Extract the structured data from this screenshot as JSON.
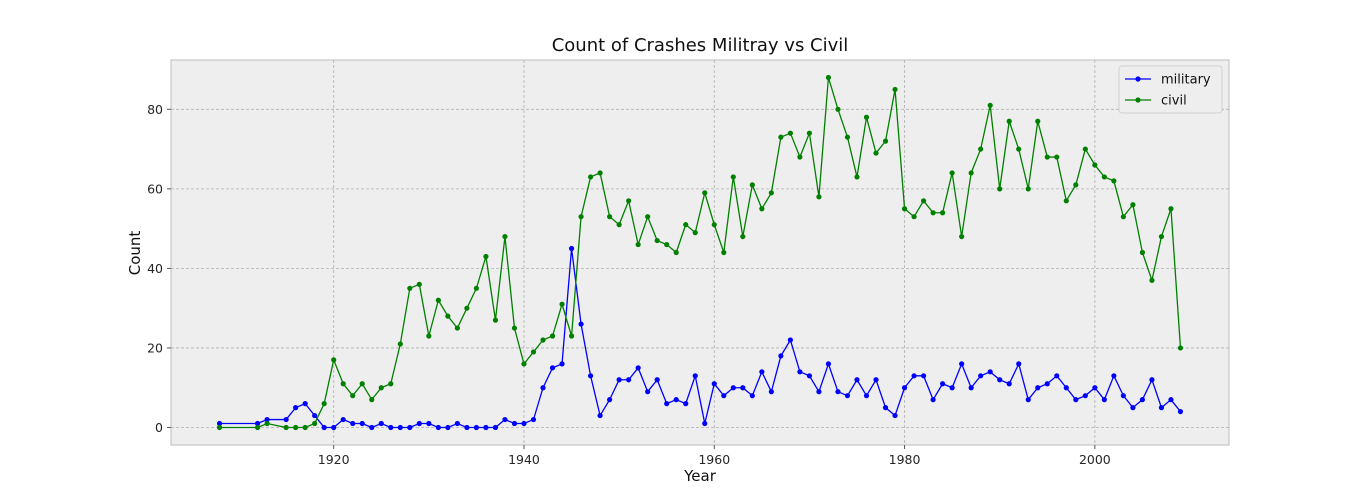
{
  "chart_data": {
    "type": "line",
    "title": "Count of Crashes Militray vs Civil",
    "xlabel": "Year",
    "ylabel": "Count",
    "xlim": [
      1902.9,
      2014.1
    ],
    "ylim": [
      -4.4,
      92.4
    ],
    "xticks": [
      1920,
      1940,
      1960,
      1980,
      2000
    ],
    "yticks": [
      0,
      20,
      40,
      60,
      80
    ],
    "grid": true,
    "legend_position": "top-right",
    "series": [
      {
        "name": "military",
        "color": "#0000ff",
        "x": [
          1908,
          1912,
          1913,
          1915,
          1916,
          1917,
          1918,
          1919,
          1920,
          1921,
          1922,
          1923,
          1924,
          1925,
          1926,
          1927,
          1928,
          1929,
          1930,
          1931,
          1932,
          1933,
          1934,
          1935,
          1936,
          1937,
          1938,
          1939,
          1940,
          1941,
          1942,
          1943,
          1944,
          1945,
          1946,
          1947,
          1948,
          1949,
          1950,
          1951,
          1952,
          1953,
          1954,
          1955,
          1956,
          1957,
          1958,
          1959,
          1960,
          1961,
          1962,
          1963,
          1964,
          1965,
          1966,
          1967,
          1968,
          1969,
          1970,
          1971,
          1972,
          1973,
          1974,
          1975,
          1976,
          1977,
          1978,
          1979,
          1980,
          1981,
          1982,
          1983,
          1984,
          1985,
          1986,
          1987,
          1988,
          1989,
          1990,
          1991,
          1992,
          1993,
          1994,
          1995,
          1996,
          1997,
          1998,
          1999,
          2000,
          2001,
          2002,
          2003,
          2004,
          2005,
          2006,
          2007,
          2008,
          2009
        ],
        "y": [
          1,
          1,
          2,
          2,
          5,
          6,
          3,
          0,
          0,
          2,
          1,
          1,
          0,
          1,
          0,
          0,
          0,
          1,
          1,
          0,
          0,
          1,
          0,
          0,
          0,
          0,
          2,
          1,
          1,
          2,
          10,
          15,
          16,
          45,
          26,
          13,
          3,
          7,
          12,
          12,
          15,
          9,
          12,
          6,
          7,
          6,
          13,
          1,
          11,
          8,
          10,
          10,
          8,
          14,
          9,
          18,
          22,
          14,
          13,
          9,
          16,
          9,
          8,
          12,
          8,
          12,
          5,
          3,
          10,
          13,
          13,
          7,
          11,
          10,
          16,
          10,
          13,
          14,
          12,
          11,
          16,
          7,
          10,
          11,
          13,
          10,
          7,
          8,
          10,
          7,
          13,
          8,
          5,
          7,
          12,
          5,
          7,
          4
        ]
      },
      {
        "name": "civil",
        "color": "#008000",
        "x": [
          1908,
          1912,
          1913,
          1915,
          1916,
          1917,
          1918,
          1919,
          1920,
          1921,
          1922,
          1923,
          1924,
          1925,
          1926,
          1927,
          1928,
          1929,
          1930,
          1931,
          1932,
          1933,
          1934,
          1935,
          1936,
          1937,
          1938,
          1939,
          1940,
          1941,
          1942,
          1943,
          1944,
          1945,
          1946,
          1947,
          1948,
          1949,
          1950,
          1951,
          1952,
          1953,
          1954,
          1955,
          1956,
          1957,
          1958,
          1959,
          1960,
          1961,
          1962,
          1963,
          1964,
          1965,
          1966,
          1967,
          1968,
          1969,
          1970,
          1971,
          1972,
          1973,
          1974,
          1975,
          1976,
          1977,
          1978,
          1979,
          1980,
          1981,
          1982,
          1983,
          1984,
          1985,
          1986,
          1987,
          1988,
          1989,
          1990,
          1991,
          1992,
          1993,
          1994,
          1995,
          1996,
          1997,
          1998,
          1999,
          2000,
          2001,
          2002,
          2003,
          2004,
          2005,
          2006,
          2007,
          2008,
          2009
        ],
        "y": [
          0,
          0,
          1,
          0,
          0,
          0,
          1,
          6,
          17,
          11,
          8,
          11,
          7,
          10,
          11,
          21,
          35,
          36,
          23,
          32,
          28,
          25,
          30,
          35,
          43,
          27,
          48,
          25,
          16,
          19,
          22,
          23,
          31,
          23,
          53,
          63,
          64,
          53,
          51,
          57,
          46,
          53,
          47,
          46,
          44,
          51,
          49,
          59,
          51,
          44,
          63,
          48,
          61,
          55,
          59,
          73,
          74,
          68,
          74,
          58,
          88,
          80,
          73,
          63,
          78,
          69,
          72,
          85,
          55,
          53,
          57,
          54,
          54,
          64,
          48,
          64,
          70,
          81,
          60,
          77,
          70,
          60,
          77,
          68,
          68,
          57,
          61,
          70,
          66,
          63,
          62,
          53,
          56,
          44,
          37,
          48,
          55,
          20
        ]
      }
    ]
  }
}
